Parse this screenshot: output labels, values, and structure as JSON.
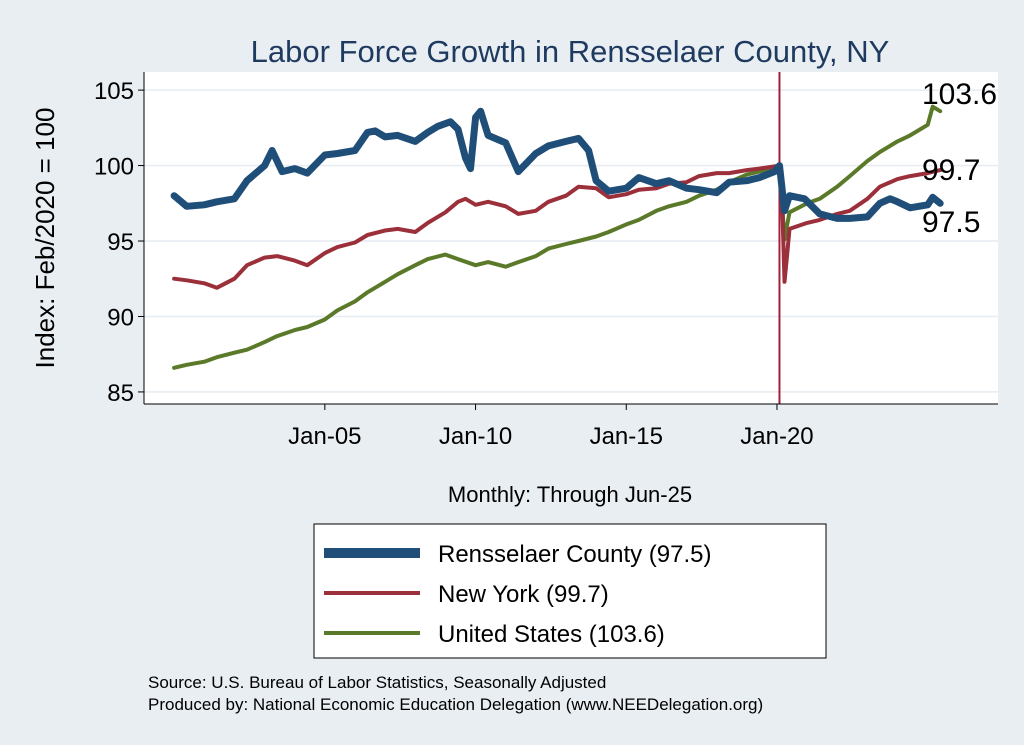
{
  "chart_data": {
    "type": "line",
    "title": "Labor Force Growth in Rensselaer  County, NY",
    "ylabel": "Index: Feb/2020 = 100",
    "xlabel": "Monthly: Through Jun-25",
    "ylim": [
      84.2,
      106.2
    ],
    "yticks": [
      85,
      90,
      95,
      100,
      105
    ],
    "xticks": [
      "Jan-05",
      "Jan-10",
      "Jan-15",
      "Jan-20"
    ],
    "x_range": [
      "2000-01",
      "2025-06"
    ],
    "reference_line": "2020-02",
    "grid": true,
    "legend_position": "bottom",
    "series": [
      {
        "name": "Rensselaer  County (97.5)",
        "end_label": "97.5",
        "color": "#1f4e79",
        "points": [
          [
            "2000-01",
            98.0
          ],
          [
            "2000-06",
            97.3
          ],
          [
            "2001-01",
            97.4
          ],
          [
            "2001-06",
            97.6
          ],
          [
            "2002-01",
            97.8
          ],
          [
            "2002-06",
            99.0
          ],
          [
            "2003-01",
            100.0
          ],
          [
            "2003-04",
            101.0
          ],
          [
            "2003-08",
            99.6
          ],
          [
            "2004-01",
            99.8
          ],
          [
            "2004-06",
            99.5
          ],
          [
            "2005-01",
            100.7
          ],
          [
            "2005-06",
            100.8
          ],
          [
            "2006-01",
            101.0
          ],
          [
            "2006-06",
            102.2
          ],
          [
            "2006-09",
            102.3
          ],
          [
            "2007-01",
            101.9
          ],
          [
            "2007-06",
            102.0
          ],
          [
            "2008-01",
            101.6
          ],
          [
            "2008-06",
            102.2
          ],
          [
            "2008-10",
            102.6
          ],
          [
            "2009-03",
            102.9
          ],
          [
            "2009-06",
            102.4
          ],
          [
            "2009-09",
            100.5
          ],
          [
            "2009-11",
            99.8
          ],
          [
            "2010-01",
            103.2
          ],
          [
            "2010-03",
            103.6
          ],
          [
            "2010-06",
            102.0
          ],
          [
            "2011-01",
            101.5
          ],
          [
            "2011-06",
            99.6
          ],
          [
            "2012-01",
            100.8
          ],
          [
            "2012-06",
            101.3
          ],
          [
            "2013-01",
            101.6
          ],
          [
            "2013-06",
            101.8
          ],
          [
            "2013-10",
            101.0
          ],
          [
            "2014-01",
            99.0
          ],
          [
            "2014-06",
            98.3
          ],
          [
            "2015-01",
            98.5
          ],
          [
            "2015-06",
            99.2
          ],
          [
            "2016-01",
            98.8
          ],
          [
            "2016-06",
            99.0
          ],
          [
            "2017-01",
            98.5
          ],
          [
            "2017-06",
            98.4
          ],
          [
            "2018-01",
            98.2
          ],
          [
            "2018-06",
            98.9
          ],
          [
            "2019-01",
            99.0
          ],
          [
            "2019-06",
            99.2
          ],
          [
            "2019-12",
            99.6
          ],
          [
            "2020-02",
            100.0
          ],
          [
            "2020-04",
            97.0
          ],
          [
            "2020-06",
            98.0
          ],
          [
            "2020-12",
            97.8
          ],
          [
            "2021-06",
            96.8
          ],
          [
            "2022-01",
            96.5
          ],
          [
            "2022-06",
            96.5
          ],
          [
            "2023-01",
            96.6
          ],
          [
            "2023-06",
            97.5
          ],
          [
            "2023-10",
            97.8
          ],
          [
            "2024-01",
            97.6
          ],
          [
            "2024-06",
            97.2
          ],
          [
            "2025-01",
            97.4
          ],
          [
            "2025-03",
            97.9
          ],
          [
            "2025-06",
            97.5
          ]
        ]
      },
      {
        "name": "New York (99.7)",
        "end_label": "99.7",
        "color": "#9b2f3a",
        "points": [
          [
            "2000-01",
            92.5
          ],
          [
            "2000-06",
            92.4
          ],
          [
            "2001-01",
            92.2
          ],
          [
            "2001-06",
            91.9
          ],
          [
            "2002-01",
            92.5
          ],
          [
            "2002-06",
            93.4
          ],
          [
            "2003-01",
            93.9
          ],
          [
            "2003-06",
            94.0
          ],
          [
            "2004-01",
            93.7
          ],
          [
            "2004-06",
            93.4
          ],
          [
            "2005-01",
            94.2
          ],
          [
            "2005-06",
            94.6
          ],
          [
            "2006-01",
            94.9
          ],
          [
            "2006-06",
            95.4
          ],
          [
            "2007-01",
            95.7
          ],
          [
            "2007-06",
            95.8
          ],
          [
            "2008-01",
            95.6
          ],
          [
            "2008-06",
            96.2
          ],
          [
            "2009-01",
            96.9
          ],
          [
            "2009-06",
            97.6
          ],
          [
            "2009-09",
            97.8
          ],
          [
            "2010-01",
            97.4
          ],
          [
            "2010-06",
            97.6
          ],
          [
            "2011-01",
            97.3
          ],
          [
            "2011-06",
            96.8
          ],
          [
            "2012-01",
            97.0
          ],
          [
            "2012-06",
            97.6
          ],
          [
            "2013-01",
            98.0
          ],
          [
            "2013-06",
            98.6
          ],
          [
            "2014-01",
            98.5
          ],
          [
            "2014-06",
            97.9
          ],
          [
            "2015-01",
            98.1
          ],
          [
            "2015-06",
            98.4
          ],
          [
            "2016-01",
            98.5
          ],
          [
            "2016-06",
            98.8
          ],
          [
            "2017-01",
            98.9
          ],
          [
            "2017-06",
            99.3
          ],
          [
            "2018-01",
            99.5
          ],
          [
            "2018-06",
            99.5
          ],
          [
            "2019-01",
            99.7
          ],
          [
            "2019-06",
            99.8
          ],
          [
            "2020-02",
            100.0
          ],
          [
            "2020-03",
            98.0
          ],
          [
            "2020-04",
            92.3
          ],
          [
            "2020-05",
            94.0
          ],
          [
            "2020-06",
            95.8
          ],
          [
            "2021-01",
            96.2
          ],
          [
            "2021-06",
            96.4
          ],
          [
            "2022-01",
            96.8
          ],
          [
            "2022-06",
            97.0
          ],
          [
            "2023-01",
            97.8
          ],
          [
            "2023-06",
            98.6
          ],
          [
            "2024-01",
            99.1
          ],
          [
            "2024-06",
            99.3
          ],
          [
            "2025-01",
            99.5
          ],
          [
            "2025-06",
            99.7
          ]
        ]
      },
      {
        "name": "United States (103.6)",
        "end_label": "103.6",
        "color": "#5a7a2a",
        "points": [
          [
            "2000-01",
            86.6
          ],
          [
            "2000-06",
            86.8
          ],
          [
            "2001-01",
            87.0
          ],
          [
            "2001-06",
            87.3
          ],
          [
            "2002-01",
            87.6
          ],
          [
            "2002-06",
            87.8
          ],
          [
            "2003-01",
            88.3
          ],
          [
            "2003-06",
            88.7
          ],
          [
            "2004-01",
            89.1
          ],
          [
            "2004-06",
            89.3
          ],
          [
            "2005-01",
            89.8
          ],
          [
            "2005-06",
            90.4
          ],
          [
            "2006-01",
            91.0
          ],
          [
            "2006-06",
            91.6
          ],
          [
            "2007-01",
            92.3
          ],
          [
            "2007-06",
            92.8
          ],
          [
            "2008-01",
            93.4
          ],
          [
            "2008-06",
            93.8
          ],
          [
            "2009-01",
            94.1
          ],
          [
            "2009-06",
            93.8
          ],
          [
            "2010-01",
            93.4
          ],
          [
            "2010-06",
            93.6
          ],
          [
            "2011-01",
            93.3
          ],
          [
            "2011-06",
            93.6
          ],
          [
            "2012-01",
            94.0
          ],
          [
            "2012-06",
            94.5
          ],
          [
            "2013-01",
            94.8
          ],
          [
            "2013-06",
            95.0
          ],
          [
            "2014-01",
            95.3
          ],
          [
            "2014-06",
            95.6
          ],
          [
            "2015-01",
            96.1
          ],
          [
            "2015-06",
            96.4
          ],
          [
            "2016-01",
            97.0
          ],
          [
            "2016-06",
            97.3
          ],
          [
            "2017-01",
            97.6
          ],
          [
            "2017-06",
            98.0
          ],
          [
            "2018-01",
            98.4
          ],
          [
            "2018-06",
            98.9
          ],
          [
            "2019-01",
            99.4
          ],
          [
            "2019-06",
            99.6
          ],
          [
            "2020-02",
            100.0
          ],
          [
            "2020-04",
            95.1
          ],
          [
            "2020-06",
            96.9
          ],
          [
            "2021-01",
            97.5
          ],
          [
            "2021-06",
            97.8
          ],
          [
            "2022-01",
            98.6
          ],
          [
            "2022-06",
            99.3
          ],
          [
            "2023-01",
            100.3
          ],
          [
            "2023-06",
            100.9
          ],
          [
            "2024-01",
            101.6
          ],
          [
            "2024-06",
            102.0
          ],
          [
            "2025-01",
            102.7
          ],
          [
            "2025-03",
            103.9
          ],
          [
            "2025-06",
            103.6
          ]
        ]
      }
    ]
  },
  "footer": {
    "source": "Source: U.S. Bureau of Labor Statistics, Seasonally Adjusted",
    "producer": "Produced by: National Economic Education Delegation (www.NEEDelegation.org)"
  }
}
